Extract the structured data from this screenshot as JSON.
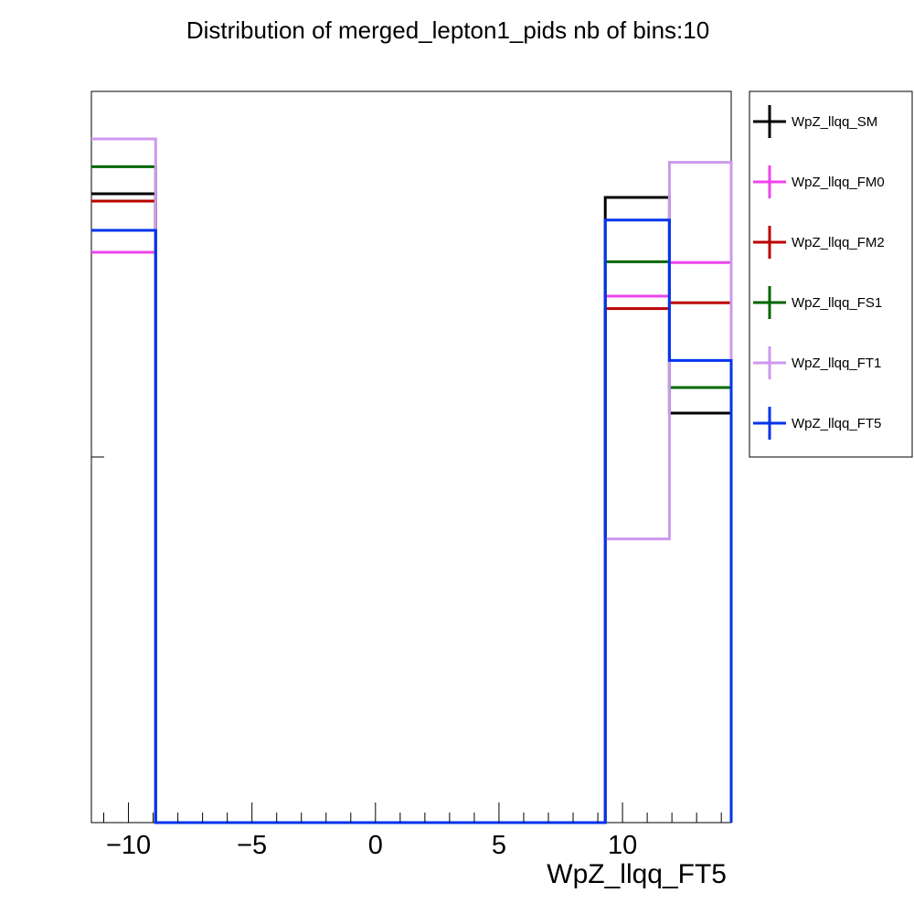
{
  "chart_data": {
    "type": "histogram",
    "title": "Distribution of merged_lepton1_pids nb of bins:10",
    "xlabel": "WpZ_llqq_FT5",
    "ylabel": "",
    "xlim": [
      -11.5,
      14.4
    ],
    "ylim": [
      0,
      1.0
    ],
    "x_ticks": [
      -10,
      -5,
      0,
      5,
      10
    ],
    "x_tick_labels": [
      "−10",
      "−5",
      "0",
      "5",
      "10"
    ],
    "y_ticks": [
      0.5
    ],
    "bins": [
      [
        -11.5,
        -8.9
      ],
      [
        -8.9,
        -6.3
      ],
      [
        -6.3,
        -3.7
      ],
      [
        -3.7,
        -1.1
      ],
      [
        -1.1,
        1.5
      ],
      [
        1.5,
        4.1
      ],
      [
        4.1,
        6.7
      ],
      [
        6.7,
        9.3
      ],
      [
        9.3,
        11.9
      ],
      [
        11.9,
        14.4
      ]
    ],
    "series": [
      {
        "name": "WpZ_llqq_SM",
        "color": "#000000",
        "values": [
          0.86,
          0,
          0,
          0,
          0,
          0,
          0,
          0,
          0.855,
          0.56
        ]
      },
      {
        "name": "WpZ_llqq_FM0",
        "color": "#ee44ee",
        "values": [
          0.78,
          0,
          0,
          0,
          0,
          0,
          0,
          0,
          0.72,
          0.766
        ]
      },
      {
        "name": "WpZ_llqq_FM2",
        "color": "#bb0000",
        "values": [
          0.85,
          0,
          0,
          0,
          0,
          0,
          0,
          0,
          0.703,
          0.711
        ]
      },
      {
        "name": "WpZ_llqq_FS1",
        "color": "#006600",
        "values": [
          0.897,
          0,
          0,
          0,
          0,
          0,
          0,
          0,
          0.767,
          0.595
        ]
      },
      {
        "name": "WpZ_llqq_FT1",
        "color": "#cc99ee",
        "values": [
          0.935,
          0,
          0,
          0,
          0,
          0,
          0,
          0,
          0.388,
          0.903
        ]
      },
      {
        "name": "WpZ_llqq_FT5",
        "color": "#0033ee",
        "values": [
          0.81,
          0,
          0,
          0,
          0,
          0,
          0,
          0,
          0.824,
          0.632
        ]
      }
    ],
    "legend_position": "right",
    "grid": false
  }
}
